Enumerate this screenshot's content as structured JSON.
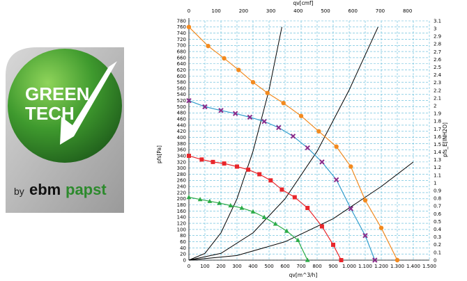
{
  "logo": {
    "line1": "GREEN",
    "line2": "TECH",
    "by": "by",
    "brand_a": "ebm",
    "brand_b": "papst"
  },
  "chart_data": {
    "type": "line",
    "xlabel": "qv[m^3/h]",
    "xlabel_top": "qv[cmf]",
    "ylabel": "pfs[Pa]",
    "ylabel_right": "pfs_E[INH2O]",
    "xlim": [
      0,
      1500
    ],
    "xlim_top": [
      0,
      880
    ],
    "ylim": [
      0,
      780
    ],
    "ylim_right": [
      0,
      3.1
    ],
    "x_ticks": [
      "0",
      "100",
      "200",
      "300",
      "400",
      "500",
      "600",
      "700",
      "800",
      "900",
      "1.000",
      "1.100",
      "1.200",
      "1.300",
      "1.400",
      "1.500"
    ],
    "x_ticks_top": [
      "0",
      "100",
      "200",
      "300",
      "400",
      "500",
      "600",
      "700",
      "800"
    ],
    "y_ticks": [
      "0",
      "20",
      "40",
      "60",
      "80",
      "100",
      "120",
      "140",
      "160",
      "180",
      "200",
      "220",
      "240",
      "260",
      "280",
      "300",
      "320",
      "340",
      "360",
      "380",
      "400",
      "420",
      "440",
      "460",
      "480",
      "500",
      "520",
      "540",
      "560",
      "580",
      "600",
      "620",
      "640",
      "660",
      "680",
      "700",
      "720",
      "740",
      "760",
      "780"
    ],
    "y_ticks_right": [
      "0",
      "0.1",
      "0.2",
      "0.3",
      "0.4",
      "0.5",
      "0.6",
      "0.7",
      "0.8",
      "0.9",
      "1",
      "1.1",
      "1.2",
      "1.3",
      "1.4",
      "1.5",
      "1.6",
      "1.7",
      "1.8",
      "1.9",
      "2",
      "2.1",
      "2.2",
      "2.3",
      "2.4",
      "2.5",
      "2.6",
      "2.7",
      "2.8",
      "2.9",
      "3",
      "3.1"
    ],
    "grid": true,
    "series": [
      {
        "color": "#f28a1f",
        "marker": "circle",
        "x": [
          0,
          120,
          220,
          310,
          400,
          490,
          590,
          700,
          810,
          920,
          1010,
          1100,
          1200,
          1300
        ],
        "y": [
          760,
          698,
          658,
          620,
          580,
          545,
          512,
          470,
          420,
          370,
          305,
          195,
          105,
          0
        ]
      },
      {
        "color": "#2f9ccc",
        "marker": "x",
        "x": [
          0,
          100,
          200,
          290,
          380,
          470,
          560,
          650,
          740,
          830,
          920,
          1010,
          1100,
          1160
        ],
        "y": [
          520,
          500,
          488,
          478,
          466,
          452,
          432,
          404,
          366,
          320,
          262,
          168,
          80,
          0
        ]
      },
      {
        "color": "#e8262b",
        "marker": "square",
        "x": [
          0,
          80,
          150,
          220,
          300,
          370,
          440,
          510,
          580,
          660,
          740,
          830,
          900,
          950
        ],
        "y": [
          340,
          328,
          320,
          315,
          305,
          295,
          280,
          260,
          230,
          205,
          170,
          110,
          50,
          0
        ]
      },
      {
        "color": "#2bab47",
        "marker": "triangle",
        "x": [
          0,
          70,
          130,
          190,
          260,
          330,
          400,
          470,
          540,
          610,
          680,
          740
        ],
        "y": [
          205,
          198,
          192,
          186,
          178,
          170,
          158,
          140,
          118,
          95,
          65,
          0
        ]
      }
    ],
    "system_curves": [
      {
        "color": "#000000",
        "x": [
          0,
          100,
          200,
          300,
          400,
          500,
          580
        ],
        "y": [
          0,
          22,
          89,
          200,
          355,
          555,
          760
        ]
      },
      {
        "color": "#000000",
        "x": [
          0,
          200,
          400,
          600,
          800,
          1000,
          1180
        ],
        "y": [
          0,
          22,
          89,
          200,
          355,
          555,
          760
        ]
      },
      {
        "color": "#000000",
        "x": [
          0,
          300,
          600,
          900,
          1200,
          1400
        ],
        "y": [
          0,
          15,
          60,
          135,
          240,
          320
        ]
      }
    ]
  }
}
